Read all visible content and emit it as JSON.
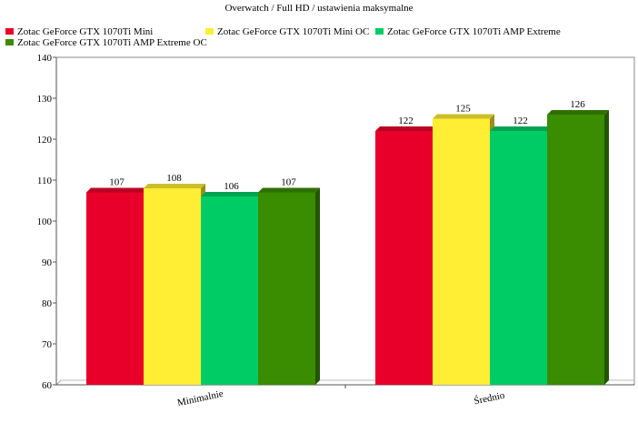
{
  "chart_data": {
    "type": "bar",
    "title": "Overwatch / Full HD / ustawienia maksymalne",
    "categories": [
      "Minimalnie",
      "Średnio"
    ],
    "series": [
      {
        "name": "Zotac GeForce GTX 1070Ti Mini",
        "color": "#e8002a",
        "values": [
          107,
          122
        ]
      },
      {
        "name": "Zotac GeForce GTX 1070Ti Mini OC",
        "color": "#ffee33",
        "values": [
          108,
          125
        ]
      },
      {
        "name": "Zotac GeForce GTX 1070Ti AMP Extreme",
        "color": "#00cc66",
        "values": [
          106,
          122
        ]
      },
      {
        "name": "Zotac GeForce GTX 1070Ti AMP Extreme OC",
        "color": "#3a8c00",
        "values": [
          107,
          126
        ]
      }
    ],
    "ylim": [
      60,
      140
    ],
    "yticks": [
      60,
      70,
      80,
      90,
      100,
      110,
      120,
      130,
      140
    ],
    "xlabel": "",
    "ylabel": "",
    "grid": false,
    "legend_position": "top-left"
  }
}
